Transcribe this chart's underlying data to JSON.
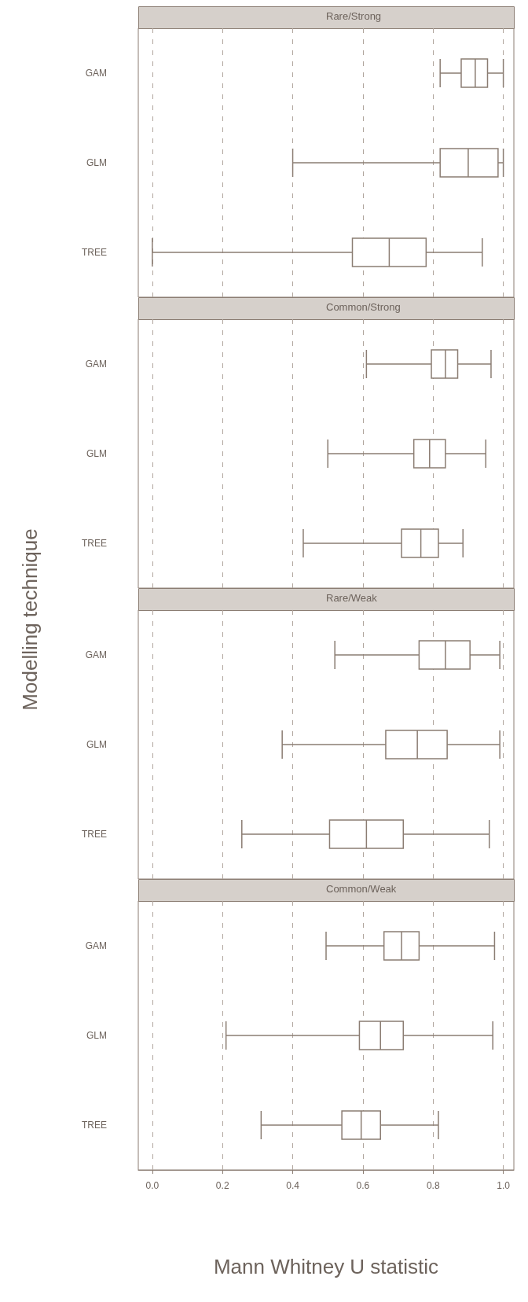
{
  "chart_data": [
    {
      "type": "box",
      "title": "Rare/Strong",
      "orientation": "horizontal",
      "categories": [
        "GAM",
        "GLM",
        "TREE"
      ],
      "color": "#8b7d73",
      "grid": "x",
      "tick_labels": "y",
      "xlim": [
        -0.04,
        1.03
      ],
      "xticks": [
        0,
        0.2,
        0.4,
        0.6,
        0.8,
        1
      ],
      "boxes": [
        {
          "low": 0.82,
          "q1": 0.88,
          "median": 0.92,
          "q3": 0.955,
          "high": 1.0
        },
        {
          "low": 0.4,
          "q1": 0.82,
          "median": 0.9,
          "q3": 0.985,
          "high": 1.0
        },
        {
          "low": 0.0,
          "q1": 0.57,
          "median": 0.675,
          "q3": 0.78,
          "high": 0.94
        }
      ]
    },
    {
      "type": "box",
      "title": "Common/Strong",
      "orientation": "horizontal",
      "categories": [
        "GAM",
        "GLM",
        "TREE"
      ],
      "color": "#8b7d73",
      "grid": "x",
      "tick_labels": "y",
      "xlim": [
        -0.04,
        1.03
      ],
      "xticks": [
        0,
        0.2,
        0.4,
        0.6,
        0.8,
        1
      ],
      "boxes": [
        {
          "low": 0.61,
          "q1": 0.795,
          "median": 0.835,
          "q3": 0.87,
          "high": 0.965
        },
        {
          "low": 0.5,
          "q1": 0.745,
          "median": 0.79,
          "q3": 0.835,
          "high": 0.95
        },
        {
          "low": 0.43,
          "q1": 0.71,
          "median": 0.765,
          "q3": 0.815,
          "high": 0.885
        }
      ]
    },
    {
      "type": "box",
      "title": "Rare/Weak",
      "ylabel": "Modelling technique",
      "orientation": "horizontal",
      "categories": [
        "GAM",
        "GLM",
        "TREE"
      ],
      "color": "#8b7d73",
      "grid": "x",
      "tick_labels": "y",
      "xlim": [
        -0.04,
        1.03
      ],
      "xticks": [
        0,
        0.2,
        0.4,
        0.6,
        0.8,
        1
      ],
      "boxes": [
        {
          "low": 0.52,
          "q1": 0.76,
          "median": 0.835,
          "q3": 0.905,
          "high": 0.99
        },
        {
          "low": 0.37,
          "q1": 0.665,
          "median": 0.755,
          "q3": 0.84,
          "high": 0.99
        },
        {
          "low": 0.255,
          "q1": 0.505,
          "median": 0.61,
          "q3": 0.715,
          "high": 0.96
        }
      ]
    },
    {
      "type": "box",
      "title": "Common/Weak",
      "xlabel": "Mann Whitney U statistic",
      "orientation": "horizontal",
      "categories": [
        "GAM",
        "GLM",
        "TREE"
      ],
      "color": "#8b7d73",
      "grid": "x",
      "xlim": [
        -0.04,
        1.03
      ],
      "xticks": [
        {
          "value": 0,
          "label": "0.0"
        },
        0.2,
        0.4,
        0.6,
        0.8,
        {
          "value": 1,
          "label": "1.0"
        }
      ],
      "boxes": [
        {
          "low": 0.495,
          "q1": 0.66,
          "median": 0.71,
          "q3": 0.76,
          "high": 0.975
        },
        {
          "low": 0.21,
          "q1": 0.59,
          "median": 0.65,
          "q3": 0.715,
          "high": 0.97
        },
        {
          "low": 0.31,
          "q1": 0.54,
          "median": 0.595,
          "q3": 0.65,
          "high": 0.815
        }
      ]
    }
  ]
}
